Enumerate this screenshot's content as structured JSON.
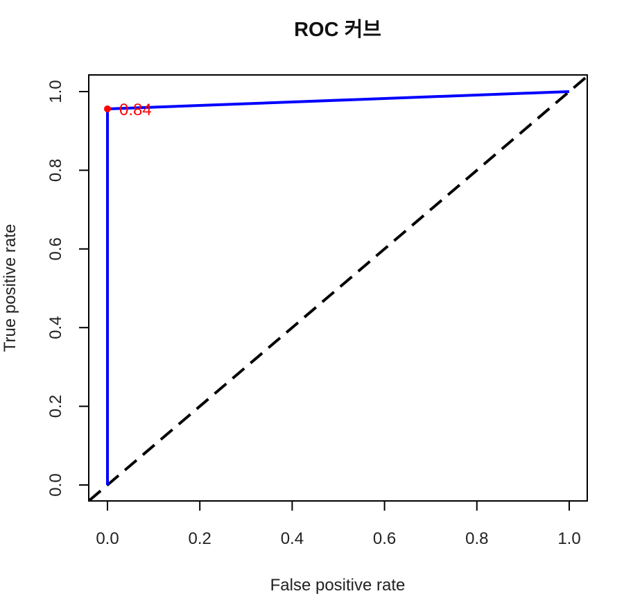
{
  "chart_data": {
    "type": "line",
    "title": "ROC 커브",
    "xlabel": "False positive rate",
    "ylabel": "True positive rate",
    "xlim": [
      0,
      1
    ],
    "ylim": [
      0,
      1
    ],
    "x_ticks": [
      "0.0",
      "0.2",
      "0.4",
      "0.6",
      "0.8",
      "1.0"
    ],
    "y_ticks": [
      "0.0",
      "0.2",
      "0.4",
      "0.6",
      "0.8",
      "1.0"
    ],
    "grid": false,
    "series": [
      {
        "color": "#0000ff",
        "style": "solid",
        "x": [
          0.0,
          0.0,
          1.0
        ],
        "y": [
          0.0,
          0.956,
          1.0
        ]
      }
    ],
    "reference_line": {
      "x": [
        0,
        1
      ],
      "y": [
        0,
        1
      ],
      "style": "dashed",
      "color": "#000000"
    },
    "annotation": {
      "text": "0.84",
      "x": 0.0,
      "y": 0.956,
      "color": "#ff0000"
    }
  }
}
